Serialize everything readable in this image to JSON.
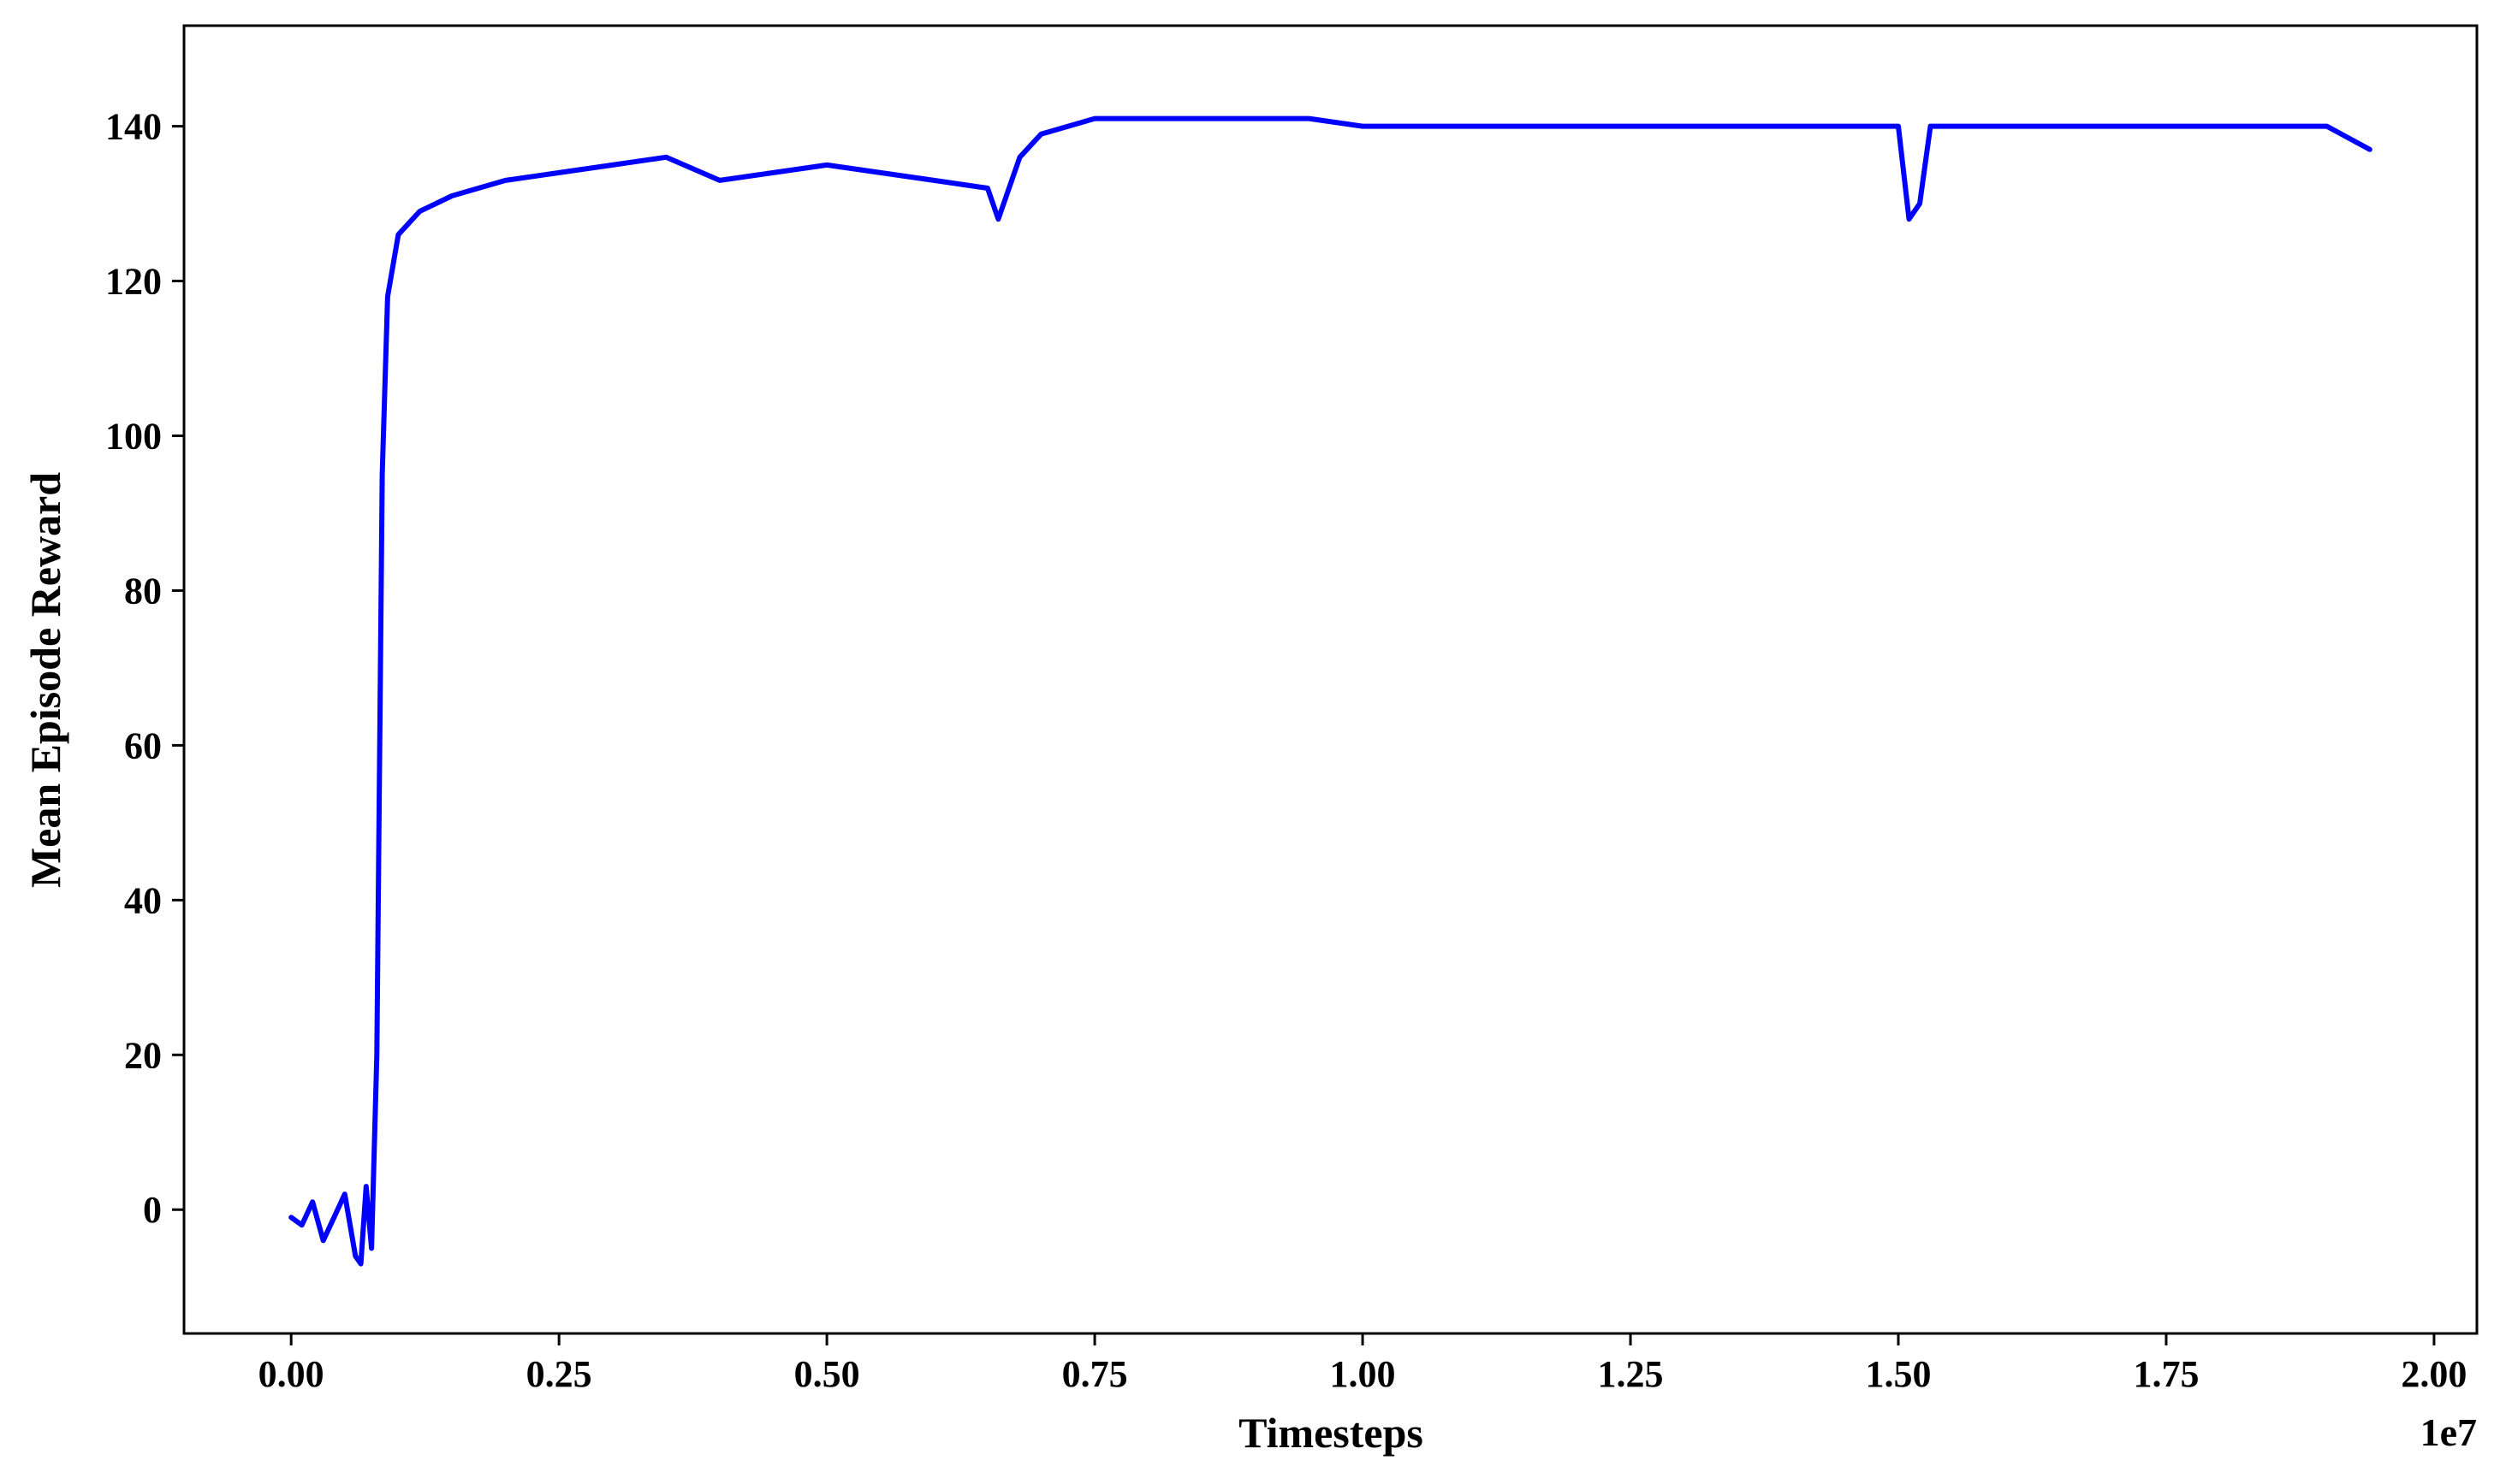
{
  "chart_data": {
    "type": "line",
    "title": "",
    "xlabel": "Timesteps",
    "ylabel": "Mean Episode Reward",
    "x_offset_label": "1e7",
    "xlim": [
      -0.1,
      2.04
    ],
    "ylim": [
      -16,
      153
    ],
    "grid": false,
    "legend": "none",
    "line_color": "#0000ff",
    "x_ticks": [
      0.0,
      0.25,
      0.5,
      0.75,
      1.0,
      1.25,
      1.5,
      1.75,
      2.0
    ],
    "x_tick_labels": [
      "0.00",
      "0.25",
      "0.50",
      "0.75",
      "1.00",
      "1.25",
      "1.50",
      "1.75",
      "2.00"
    ],
    "y_ticks": [
      0,
      20,
      40,
      60,
      80,
      100,
      120,
      140
    ],
    "y_tick_labels": [
      "0",
      "20",
      "40",
      "60",
      "80",
      "100",
      "120",
      "140"
    ],
    "series": [
      {
        "x": [
          0.0,
          0.01,
          0.02,
          0.03,
          0.04,
          0.05,
          0.06,
          0.065,
          0.07,
          0.075,
          0.08,
          0.085,
          0.09,
          0.1,
          0.12,
          0.15,
          0.2,
          0.25,
          0.3,
          0.35,
          0.4,
          0.45,
          0.5,
          0.55,
          0.6,
          0.65,
          0.66,
          0.68,
          0.7,
          0.75,
          0.8,
          0.85,
          0.9,
          0.95,
          1.0,
          1.1,
          1.2,
          1.3,
          1.4,
          1.45,
          1.5,
          1.51,
          1.52,
          1.53,
          1.55,
          1.6,
          1.7,
          1.8,
          1.9,
          1.94
        ],
        "y": [
          -1,
          -2,
          1,
          -4,
          -1,
          2,
          -6,
          -7,
          3,
          -5,
          20,
          95,
          118,
          126,
          129,
          131,
          133,
          134,
          135,
          136,
          133,
          134,
          135,
          134,
          133,
          132,
          128,
          136,
          139,
          141,
          141,
          141,
          141,
          141,
          140,
          140,
          140,
          140,
          140,
          140,
          140,
          128,
          130,
          140,
          140,
          140,
          140,
          140,
          140,
          137
        ]
      }
    ]
  }
}
